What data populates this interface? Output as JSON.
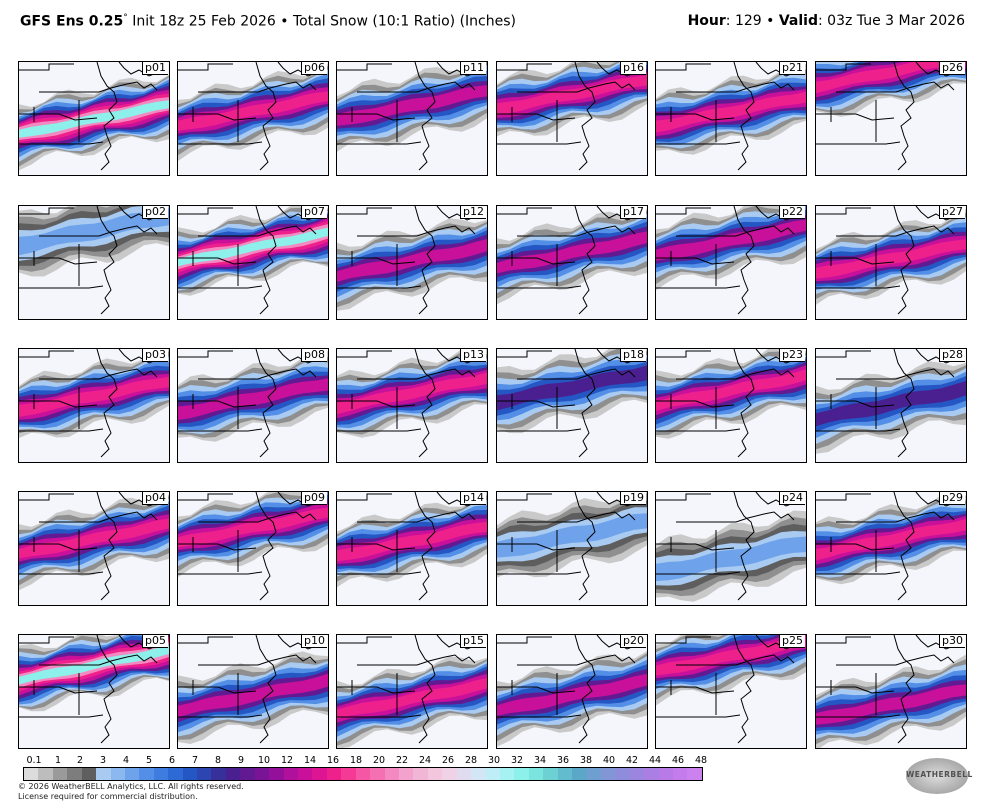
{
  "header": {
    "model": "GFS Ens 0.25",
    "degree": "°",
    "init": "Init 18z 25 Feb 2026",
    "bullet": "•",
    "product": "Total Snow (10:1 Ratio) (Inches)",
    "hour_label": "Hour",
    "hour_value": ": 129",
    "bullet2": "•",
    "valid_label": "Valid",
    "valid_value": ": 03z Tue 3 Mar 2026"
  },
  "members": [
    {
      "label": "p01",
      "intensity": 5,
      "band": 0.42,
      "south": 0.1
    },
    {
      "label": "p06",
      "intensity": 4,
      "band": 0.4,
      "south": 0.05
    },
    {
      "label": "p11",
      "intensity": 3,
      "band": 0.38,
      "south": 0.02
    },
    {
      "label": "p16",
      "intensity": 4,
      "band": 0.3,
      "south": 0.0
    },
    {
      "label": "p21",
      "intensity": 4,
      "band": 0.4,
      "south": 0.05
    },
    {
      "label": "p26",
      "intensity": 4,
      "band": 0.15,
      "south": -0.05
    },
    {
      "label": "p02",
      "intensity": 1,
      "band": 0.28,
      "south": -0.05
    },
    {
      "label": "p07",
      "intensity": 5,
      "band": 0.3,
      "south": 0.08
    },
    {
      "label": "p12",
      "intensity": 3,
      "band": 0.45,
      "south": 0.05
    },
    {
      "label": "p17",
      "intensity": 3,
      "band": 0.4,
      "south": 0.03
    },
    {
      "label": "p22",
      "intensity": 3,
      "band": 0.3,
      "south": 0.02
    },
    {
      "label": "p27",
      "intensity": 4,
      "band": 0.4,
      "south": 0.08
    },
    {
      "label": "p03",
      "intensity": 4,
      "band": 0.38,
      "south": 0.05
    },
    {
      "label": "p08",
      "intensity": 3,
      "band": 0.4,
      "south": 0.05
    },
    {
      "label": "p13",
      "intensity": 4,
      "band": 0.35,
      "south": 0.05
    },
    {
      "label": "p18",
      "intensity": 2,
      "band": 0.35,
      "south": 0.0
    },
    {
      "label": "p23",
      "intensity": 4,
      "band": 0.35,
      "south": 0.03
    },
    {
      "label": "p28",
      "intensity": 2,
      "band": 0.45,
      "south": 0.05
    },
    {
      "label": "p04",
      "intensity": 4,
      "band": 0.38,
      "south": 0.05
    },
    {
      "label": "p09",
      "intensity": 4,
      "band": 0.3,
      "south": 0.03
    },
    {
      "label": "p14",
      "intensity": 4,
      "band": 0.4,
      "south": 0.05
    },
    {
      "label": "p19",
      "intensity": 1,
      "band": 0.4,
      "south": 0.0
    },
    {
      "label": "p24",
      "intensity": 1,
      "band": 0.55,
      "south": 0.05
    },
    {
      "label": "p29",
      "intensity": 4,
      "band": 0.35,
      "south": 0.08
    },
    {
      "label": "p05",
      "intensity": 5,
      "band": 0.25,
      "south": 0.03
    },
    {
      "label": "p10",
      "intensity": 3,
      "band": 0.5,
      "south": 0.05
    },
    {
      "label": "p15",
      "intensity": 4,
      "band": 0.5,
      "south": 0.08
    },
    {
      "label": "p20",
      "intensity": 3,
      "band": 0.5,
      "south": 0.05
    },
    {
      "label": "p25",
      "intensity": 4,
      "band": 0.2,
      "south": 0.0
    },
    {
      "label": "p30",
      "intensity": 3,
      "band": 0.55,
      "south": 0.08
    }
  ],
  "colorbar": {
    "ticks": [
      "0.1",
      "1",
      "2",
      "3",
      "4",
      "5",
      "6",
      "7",
      "8",
      "9",
      "10",
      "12",
      "14",
      "16",
      "18",
      "20",
      "22",
      "24",
      "26",
      "28",
      "30",
      "32",
      "34",
      "36",
      "38",
      "40",
      "42",
      "44",
      "46",
      "48"
    ],
    "colors": [
      "#dcdcdc",
      "#bdbdbd",
      "#9a9a9a",
      "#7d7d7d",
      "#5f5f5f",
      "#a9cbf2",
      "#8cb8f0",
      "#6ea3ec",
      "#538fe6",
      "#3f7ce0",
      "#2e6ad6",
      "#2557c4",
      "#2d45b0",
      "#38309a",
      "#4a2090",
      "#621a92",
      "#7a1496",
      "#95109a",
      "#b0109c",
      "#c8109a",
      "#dd1592",
      "#ee208c",
      "#f53a96",
      "#f557a4",
      "#f470b3",
      "#f489c1",
      "#f2a2cd",
      "#f1b6d6",
      "#f3c6de",
      "#f0d2e6",
      "#e0dbef",
      "#d2e6f5",
      "#bfeef7",
      "#a6f2f2",
      "#8df0ea",
      "#7ce4de",
      "#6dd0d2",
      "#62bccd",
      "#5aa7c8",
      "#6e9fd0",
      "#8296d6",
      "#8f8ddb",
      "#9c85df",
      "#aa7ee2",
      "#b87ae6",
      "#c47beb",
      "#cc82ee"
    ]
  },
  "footer": {
    "copyright": "© 2026 WeatherBELL Analytics, LLC. All rights reserved.",
    "license": "License required for commercial distribution.",
    "logo_text": "WEATHERBELL"
  }
}
